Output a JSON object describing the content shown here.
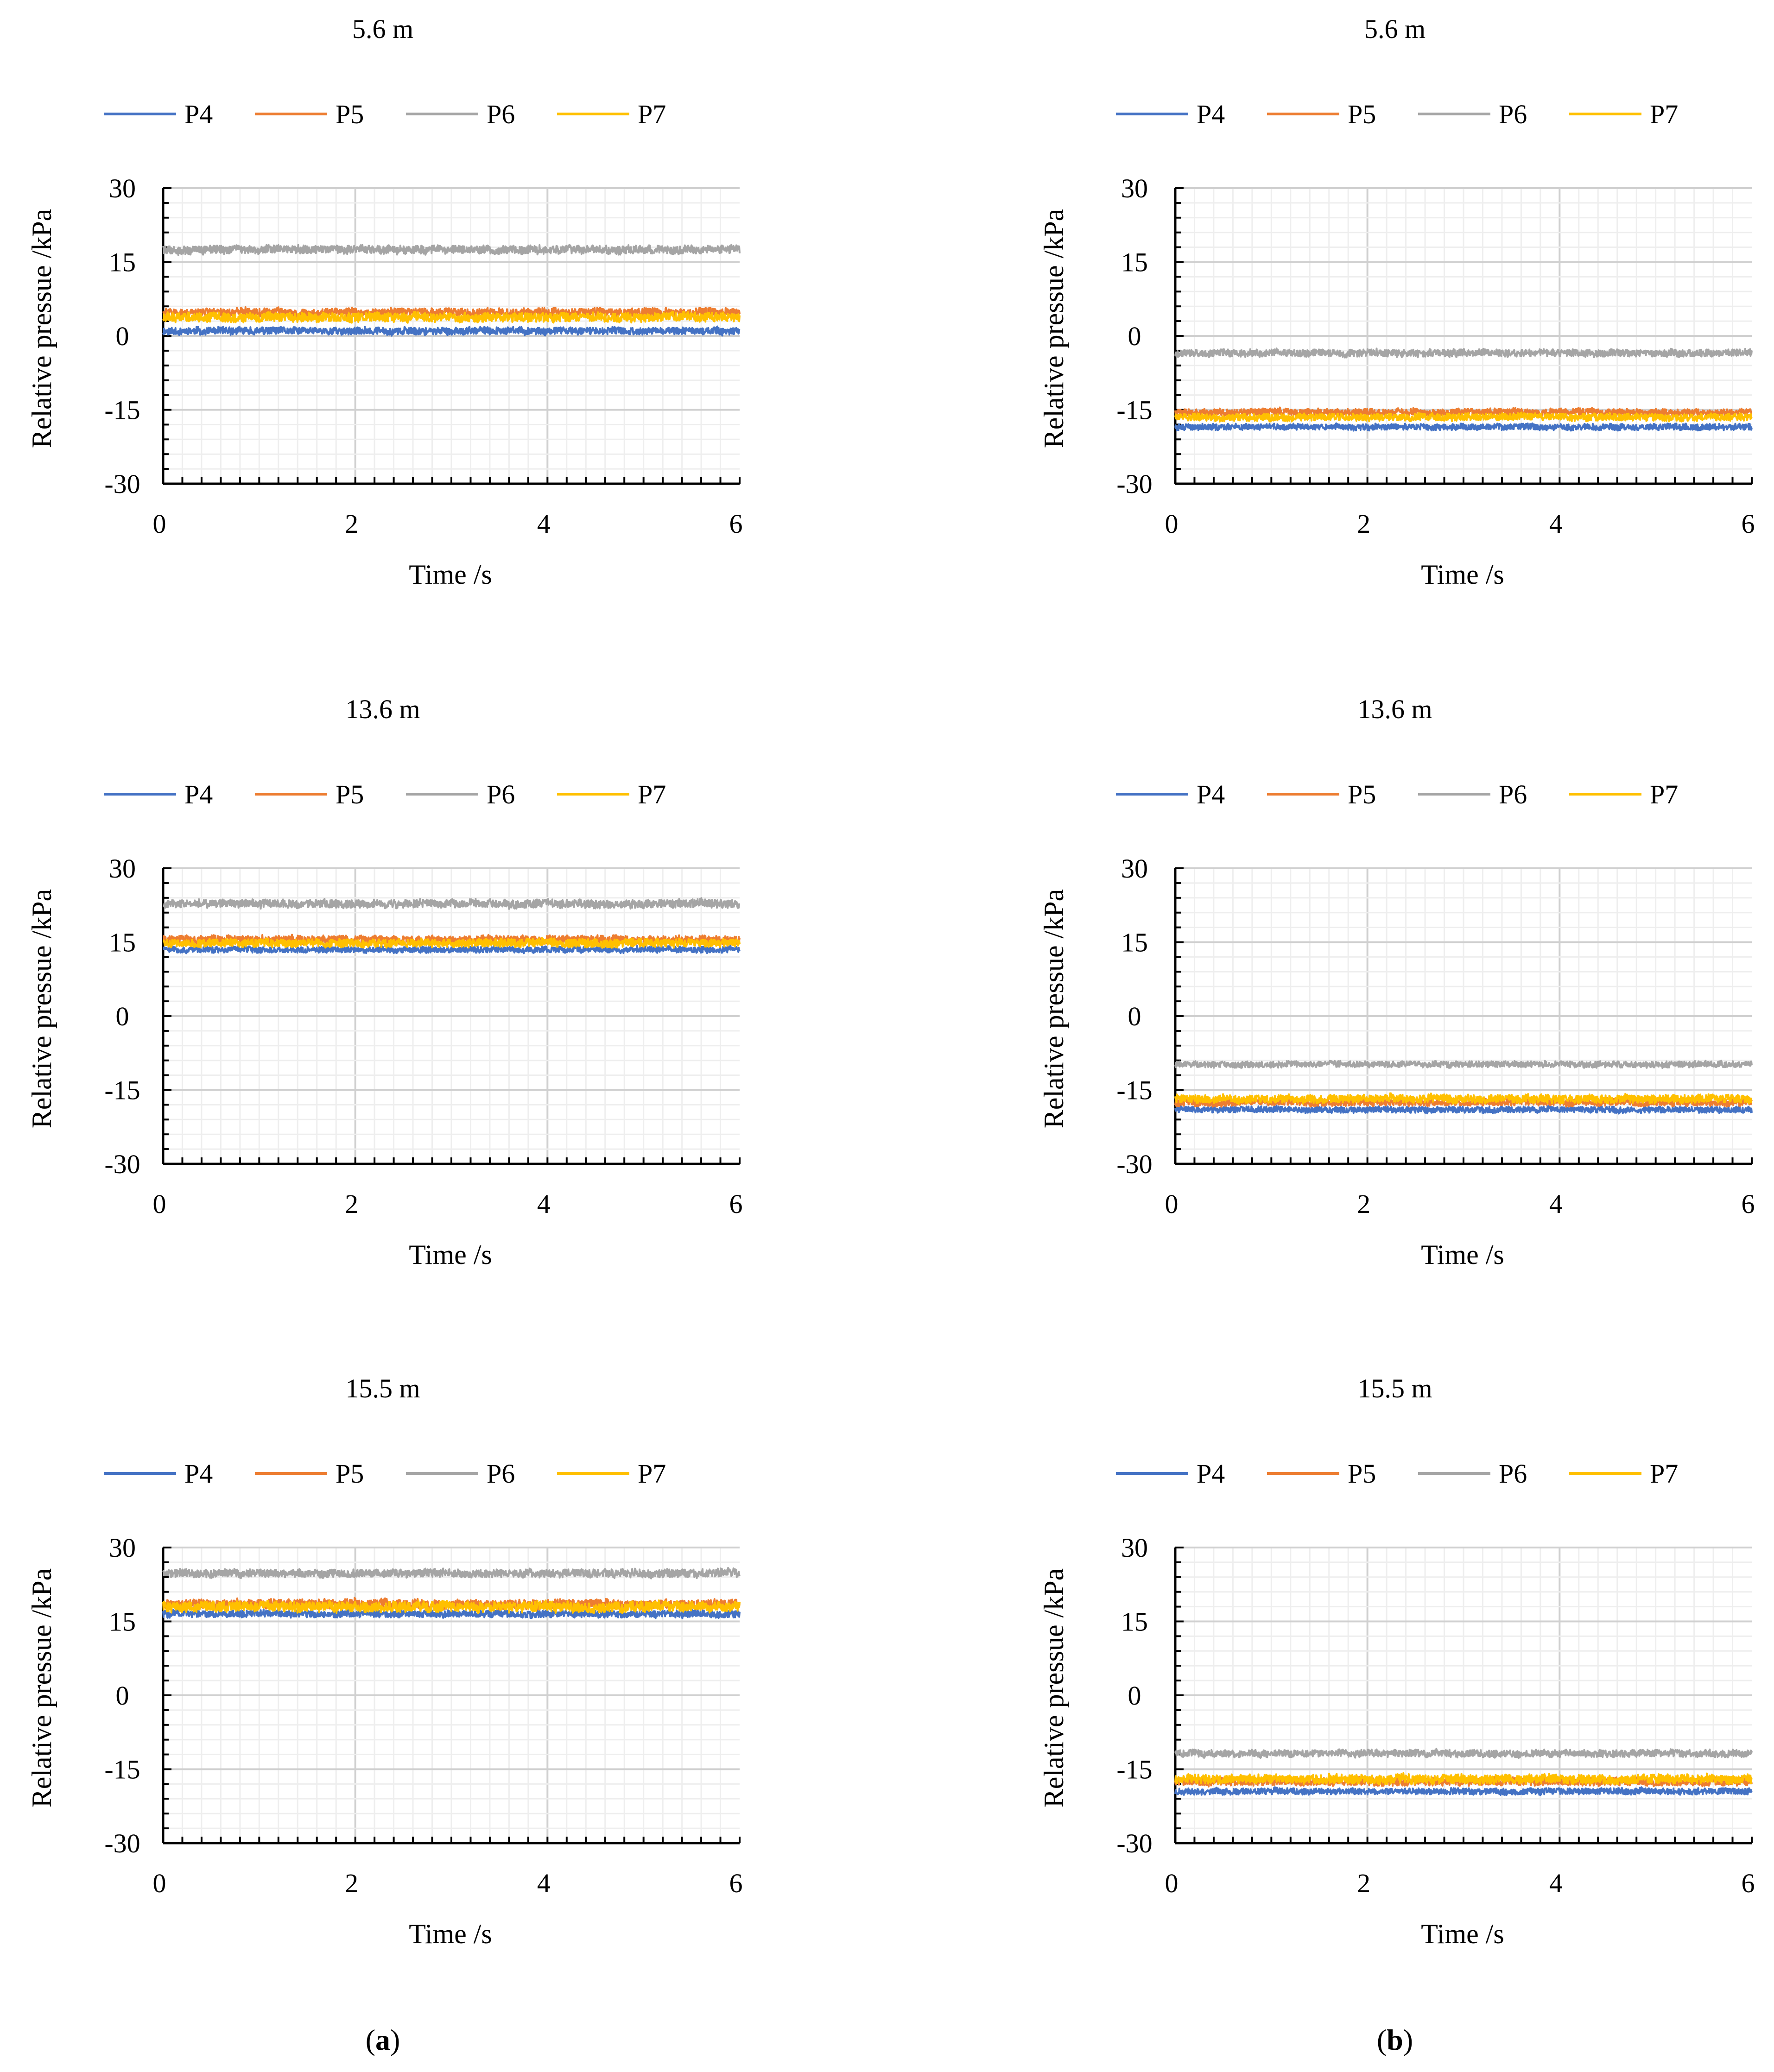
{
  "chart_data": [
    {
      "type": "line",
      "panel": "a",
      "title": "5.6 m",
      "xlabel": "Time /s",
      "ylabel": "Relative pressue /kPa",
      "xlim": [
        0,
        6
      ],
      "ylim": [
        -30,
        30
      ],
      "xticks": [
        0,
        2,
        4,
        6
      ],
      "yticks": [
        30,
        15,
        0,
        -15,
        -30
      ],
      "grid": true,
      "legend": "top",
      "series": [
        {
          "name": "P4",
          "color": "#4472C4",
          "mean": 1.0,
          "amplitude": 1.4
        },
        {
          "name": "P5",
          "color": "#ED7D31",
          "mean": 4.8,
          "amplitude": 1.6
        },
        {
          "name": "P6",
          "color": "#A5A5A5",
          "mean": 17.5,
          "amplitude": 1.6
        },
        {
          "name": "P7",
          "color": "#FFC000",
          "mean": 3.8,
          "amplitude": 1.8
        }
      ]
    },
    {
      "type": "line",
      "panel": "b",
      "title": "5.6 m",
      "xlabel": "Time /s",
      "ylabel": "Relative pressue /kPa",
      "xlim": [
        0,
        6
      ],
      "ylim": [
        -30,
        30
      ],
      "xticks": [
        0,
        2,
        4,
        6
      ],
      "yticks": [
        30,
        15,
        0,
        -15,
        -30
      ],
      "grid": true,
      "legend": "top",
      "series": [
        {
          "name": "P4",
          "color": "#4472C4",
          "mean": -18.5,
          "amplitude": 1.2
        },
        {
          "name": "P5",
          "color": "#ED7D31",
          "mean": -15.5,
          "amplitude": 1.4
        },
        {
          "name": "P6",
          "color": "#A5A5A5",
          "mean": -3.5,
          "amplitude": 1.4
        },
        {
          "name": "P7",
          "color": "#FFC000",
          "mean": -16.5,
          "amplitude": 1.4
        }
      ]
    },
    {
      "type": "line",
      "panel": "a",
      "title": "13.6 m",
      "xlabel": "Time /s",
      "ylabel": "Relative pressue /kPa",
      "xlim": [
        0,
        6
      ],
      "ylim": [
        -30,
        30
      ],
      "xticks": [
        0,
        2,
        4,
        6
      ],
      "yticks": [
        30,
        15,
        0,
        -15,
        -30
      ],
      "grid": true,
      "legend": "top",
      "series": [
        {
          "name": "P4",
          "color": "#4472C4",
          "mean": 13.5,
          "amplitude": 1.2
        },
        {
          "name": "P5",
          "color": "#ED7D31",
          "mean": 15.5,
          "amplitude": 1.6
        },
        {
          "name": "P6",
          "color": "#A5A5A5",
          "mean": 22.8,
          "amplitude": 1.6
        },
        {
          "name": "P7",
          "color": "#FFC000",
          "mean": 14.8,
          "amplitude": 1.6
        }
      ]
    },
    {
      "type": "line",
      "panel": "b",
      "title": "13.6 m",
      "xlabel": "Time /s",
      "ylabel": "Relative pressue /kPa",
      "xlim": [
        0,
        6
      ],
      "ylim": [
        -30,
        30
      ],
      "xticks": [
        0,
        2,
        4,
        6
      ],
      "yticks": [
        30,
        15,
        0,
        -15,
        -30
      ],
      "grid": true,
      "legend": "top",
      "series": [
        {
          "name": "P4",
          "color": "#4472C4",
          "mean": -19.0,
          "amplitude": 1.2
        },
        {
          "name": "P5",
          "color": "#ED7D31",
          "mean": -17.5,
          "amplitude": 1.4
        },
        {
          "name": "P6",
          "color": "#A5A5A5",
          "mean": -9.8,
          "amplitude": 1.2
        },
        {
          "name": "P7",
          "color": "#FFC000",
          "mean": -16.8,
          "amplitude": 1.6
        }
      ]
    },
    {
      "type": "line",
      "panel": "a",
      "title": "15.5 m",
      "xlabel": "Time /s",
      "ylabel": "Relative pressue /kPa",
      "xlim": [
        0,
        6
      ],
      "ylim": [
        -30,
        30
      ],
      "xticks": [
        0,
        2,
        4,
        6
      ],
      "yticks": [
        30,
        15,
        0,
        -15,
        -30
      ],
      "grid": true,
      "legend": "top",
      "series": [
        {
          "name": "P4",
          "color": "#4472C4",
          "mean": 16.5,
          "amplitude": 1.4
        },
        {
          "name": "P5",
          "color": "#ED7D31",
          "mean": 18.5,
          "amplitude": 1.8
        },
        {
          "name": "P6",
          "color": "#A5A5A5",
          "mean": 24.8,
          "amplitude": 1.6
        },
        {
          "name": "P7",
          "color": "#FFC000",
          "mean": 18.0,
          "amplitude": 2.0
        }
      ]
    },
    {
      "type": "line",
      "panel": "b",
      "title": "15.5 m",
      "xlabel": "Time /s",
      "ylabel": "Relative pressue /kPa",
      "xlim": [
        0,
        6
      ],
      "ylim": [
        -30,
        30
      ],
      "xticks": [
        0,
        2,
        4,
        6
      ],
      "yticks": [
        30,
        15,
        0,
        -15,
        -30
      ],
      "grid": true,
      "legend": "top",
      "series": [
        {
          "name": "P4",
          "color": "#4472C4",
          "mean": -19.5,
          "amplitude": 1.2
        },
        {
          "name": "P5",
          "color": "#ED7D31",
          "mean": -17.5,
          "amplitude": 1.6
        },
        {
          "name": "P6",
          "color": "#A5A5A5",
          "mean": -11.8,
          "amplitude": 1.4
        },
        {
          "name": "P7",
          "color": "#FFC000",
          "mean": -17.0,
          "amplitude": 1.8
        }
      ]
    }
  ],
  "panel_labels": [
    "a",
    "b"
  ]
}
